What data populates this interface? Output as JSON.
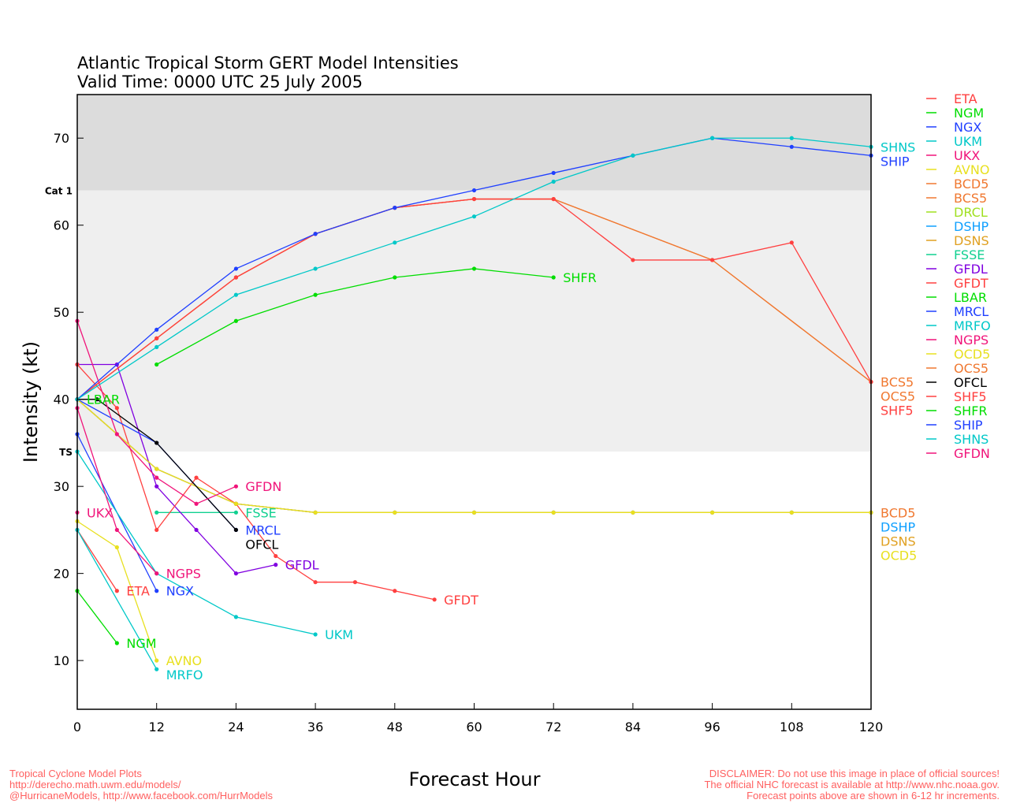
{
  "chart_data": {
    "type": "line",
    "title": "Atlantic Tropical Storm GERT Model Intensities",
    "subtitle": "Valid Time: 0000 UTC 25 July 2005",
    "xlabel": "Forecast Hour",
    "ylabel": "Intensity (kt)",
    "xlim": [
      0,
      120
    ],
    "ylim": [
      4.4,
      75
    ],
    "xticks": [
      0,
      12,
      24,
      36,
      48,
      60,
      72,
      84,
      96,
      108,
      120
    ],
    "yticks": [
      10,
      20,
      30,
      40,
      50,
      60,
      70
    ],
    "bands": [
      {
        "label": "Cat 1",
        "from": 64,
        "to": 75,
        "color": "#dcdcdc"
      },
      {
        "label": "TS",
        "from": 34,
        "to": 64,
        "color": "#efefef"
      }
    ],
    "legend_position": "right",
    "series": [
      {
        "name": "ETA",
        "color": "#ff4040",
        "x": [
          0,
          6
        ],
        "y": [
          25,
          18
        ]
      },
      {
        "name": "NGM",
        "color": "#00dd00",
        "x": [
          0,
          6
        ],
        "y": [
          18,
          12
        ]
      },
      {
        "name": "NGX",
        "color": "#2040ff",
        "x": [
          0,
          12
        ],
        "y": [
          36,
          18
        ]
      },
      {
        "name": "UKM",
        "color": "#00c8c8",
        "x": [
          0,
          12,
          24,
          36
        ],
        "y": [
          34,
          20,
          15,
          13
        ]
      },
      {
        "name": "UKX",
        "color": "#f0147a",
        "x": [
          0
        ],
        "y": [
          27
        ]
      },
      {
        "name": "AVNO",
        "color": "#e8e020",
        "x": [
          0,
          6,
          12
        ],
        "y": [
          26,
          23,
          10
        ]
      },
      {
        "name": "BCD5",
        "color": "#f07830",
        "x": [
          0,
          12,
          24,
          36,
          48,
          60,
          72,
          84,
          96,
          108,
          120
        ],
        "y": [
          40,
          32,
          28,
          27,
          27,
          27,
          27,
          27,
          27,
          27,
          27
        ]
      },
      {
        "name": "BCS5",
        "color": "#f07830",
        "x": [
          0,
          12,
          24,
          36,
          48,
          60,
          72,
          96,
          120
        ],
        "y": [
          40,
          47,
          54,
          59,
          62,
          63,
          63,
          56,
          42
        ]
      },
      {
        "name": "DRCL",
        "color": "#a0e020",
        "x": [],
        "y": []
      },
      {
        "name": "DSHP",
        "color": "#10a0ff",
        "x": [
          0,
          12,
          24,
          36,
          48,
          60,
          72,
          84,
          96,
          108,
          120
        ],
        "y": [
          40,
          32,
          28,
          27,
          27,
          27,
          27,
          27,
          27,
          27,
          27
        ]
      },
      {
        "name": "DSNS",
        "color": "#e0a020",
        "x": [
          0,
          12,
          24,
          36,
          48,
          60,
          72,
          84,
          96,
          108,
          120
        ],
        "y": [
          40,
          32,
          28,
          27,
          27,
          27,
          27,
          27,
          27,
          27,
          27
        ]
      },
      {
        "name": "FSSE",
        "color": "#10d090",
        "x": [
          12,
          24
        ],
        "y": [
          27,
          27
        ]
      },
      {
        "name": "GFDL",
        "color": "#8000e0",
        "x": [
          0,
          6,
          12,
          18,
          24,
          30
        ],
        "y": [
          44,
          44,
          30,
          25,
          20,
          21
        ]
      },
      {
        "name": "GFDT",
        "color": "#ff4040",
        "x": [
          0,
          6,
          12,
          18,
          24,
          30,
          36,
          42,
          48,
          54
        ],
        "y": [
          44,
          39,
          25,
          31,
          28,
          22,
          19,
          19,
          18,
          17
        ]
      },
      {
        "name": "LBAR",
        "color": "#00dd00",
        "x": [
          0
        ],
        "y": [
          40
        ]
      },
      {
        "name": "MRCL",
        "color": "#2040ff",
        "x": [
          0,
          12,
          24
        ],
        "y": [
          40,
          35,
          25
        ]
      },
      {
        "name": "MRFO",
        "color": "#00c8c8",
        "x": [
          0,
          12
        ],
        "y": [
          25,
          9
        ]
      },
      {
        "name": "NGPS",
        "color": "#f0147a",
        "x": [
          0,
          6,
          12
        ],
        "y": [
          39,
          25,
          20
        ]
      },
      {
        "name": "OCD5",
        "color": "#e8e020",
        "x": [
          0,
          12,
          24,
          36,
          48,
          60,
          72,
          84,
          96,
          108,
          120
        ],
        "y": [
          40,
          32,
          28,
          27,
          27,
          27,
          27,
          27,
          27,
          27,
          27
        ]
      },
      {
        "name": "OCS5",
        "color": "#f07830",
        "x": [
          0,
          12,
          24,
          36,
          48,
          60,
          72,
          96,
          120
        ],
        "y": [
          40,
          47,
          54,
          59,
          62,
          63,
          63,
          56,
          42
        ]
      },
      {
        "name": "OFCL",
        "color": "#000000",
        "x": [
          0,
          3,
          12,
          24
        ],
        "y": [
          40,
          40,
          35,
          25
        ]
      },
      {
        "name": "SHF5",
        "color": "#ff4040",
        "x": [
          0,
          12,
          24,
          36,
          48,
          60,
          72,
          84,
          96,
          108,
          120
        ],
        "y": [
          40,
          47,
          54,
          59,
          62,
          63,
          63,
          56,
          56,
          58,
          42
        ]
      },
      {
        "name": "SHFR",
        "color": "#00dd00",
        "x": [
          12,
          24,
          36,
          48,
          60,
          72
        ],
        "y": [
          44,
          49,
          52,
          54,
          55,
          54
        ]
      },
      {
        "name": "SHIP",
        "color": "#2040ff",
        "x": [
          0,
          12,
          24,
          36,
          48,
          60,
          72,
          84,
          96,
          108,
          120
        ],
        "y": [
          40,
          48,
          55,
          59,
          62,
          64,
          66,
          68,
          70,
          69,
          68
        ]
      },
      {
        "name": "SHNS",
        "color": "#00c8c8",
        "x": [
          0,
          12,
          24,
          36,
          48,
          60,
          72,
          84,
          96,
          108,
          120
        ],
        "y": [
          40,
          46,
          52,
          55,
          58,
          61,
          65,
          68,
          70,
          70,
          69
        ]
      },
      {
        "name": "GFDN",
        "color": "#f0147a",
        "x": [
          0,
          6,
          12,
          18,
          24
        ],
        "y": [
          49,
          36,
          31,
          28,
          30
        ]
      }
    ]
  },
  "footer": {
    "left": [
      "Tropical Cyclone Model Plots",
      "http://derecho.math.uwm.edu/models/",
      "@HurricaneModels, http://www.facebook.com/HurrModels"
    ],
    "right": [
      "DISCLAIMER: Do not use this image in place of official sources!",
      "The official NHC forecast is available at http://www.nhc.noaa.gov.",
      "Forecast points above are shown in 6-12 hr increments."
    ]
  }
}
